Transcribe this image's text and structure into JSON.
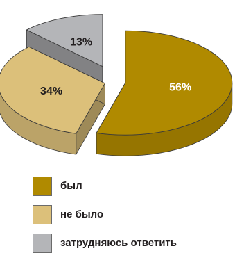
{
  "chart_data": {
    "type": "pie",
    "style": "3d-exploded",
    "categories": [
      "был",
      "не было",
      "затрудняюсь ответить"
    ],
    "values": [
      56,
      34,
      13
    ],
    "data_labels": [
      "56%",
      "34%",
      "13%"
    ],
    "colors": [
      "#b08a00",
      "#dcc07a",
      "#b4b5b8"
    ],
    "label_colors": [
      "#ffffff",
      "#231f20",
      "#231f20"
    ],
    "legend_placement": "bottom"
  }
}
